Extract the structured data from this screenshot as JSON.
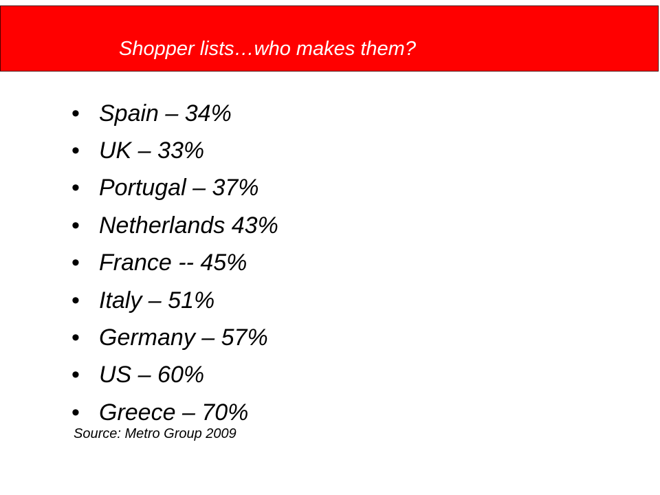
{
  "slide": {
    "title": "Shopper lists…who makes them?",
    "bullet_symbol": "•",
    "items": [
      "Spain – 34%",
      "UK – 33%",
      "Portugal – 37%",
      "Netherlands 43%",
      "France -- 45%",
      "Italy – 51%",
      "Germany – 57%",
      "US – 60%",
      "Greece – 70%"
    ],
    "source": "Source: Metro Group 2009"
  },
  "colors": {
    "title_bar": "#ff0000",
    "title_text": "#ffffff",
    "body_text": "#000000"
  }
}
